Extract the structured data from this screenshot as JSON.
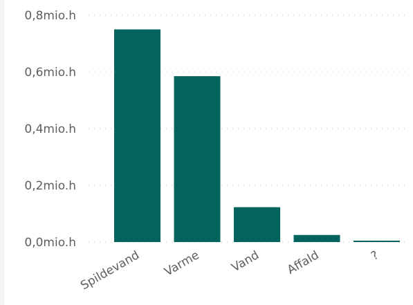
{
  "chart_data": {
    "type": "bar",
    "title": "",
    "xlabel": "",
    "ylabel": "",
    "categories": [
      "Spildevand",
      "Varme",
      "Vand",
      "Affald",
      "?"
    ],
    "values": [
      0.75,
      0.585,
      0.123,
      0.025,
      0.005
    ],
    "ylim": [
      0,
      0.8
    ],
    "yticks": [
      0.0,
      0.2,
      0.4,
      0.6,
      0.8
    ],
    "ytick_labels": [
      "0,0mio.h",
      "0,2mio.h",
      "0,4mio.h",
      "0,6mio.h",
      "0,8mio.h"
    ],
    "grid": true,
    "bar_color": "#03635d",
    "legend": "none"
  }
}
